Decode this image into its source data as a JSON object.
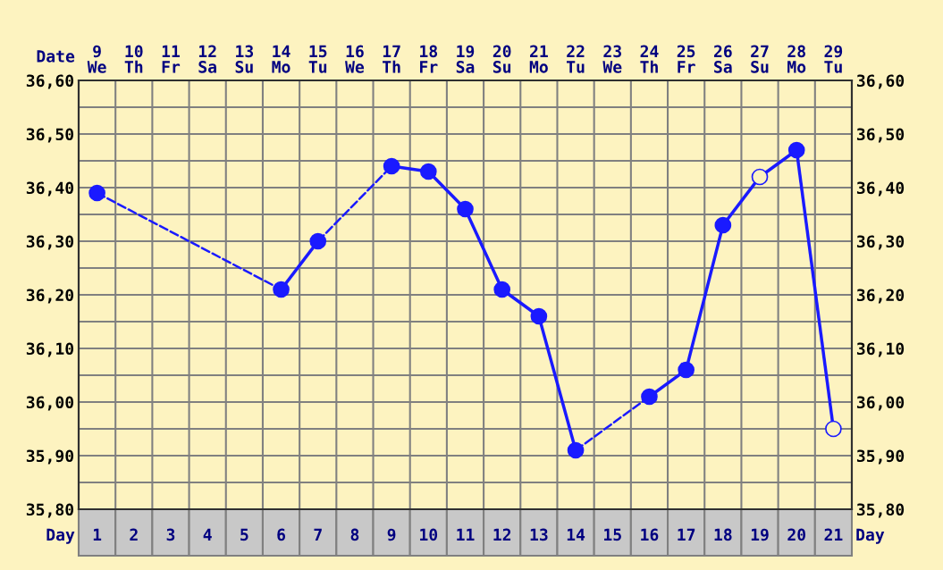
{
  "chart_data": {
    "type": "line",
    "categories": [
      "1",
      "2",
      "3",
      "4",
      "5",
      "6",
      "7",
      "8",
      "9",
      "10",
      "11",
      "12",
      "13",
      "14",
      "15",
      "16",
      "17",
      "18",
      "19",
      "20",
      "21"
    ],
    "annotations": [
      "Date",
      "9\nWe",
      "10\nTh",
      "11\nFr",
      "12\nSa",
      "13\nSu",
      "14\nMo",
      "15\nTu",
      "16\nWe",
      "17\nTh",
      "18\nFr",
      "19\nSa",
      "20\nSu",
      "21\nMo",
      "22\nTu",
      "23\nWe",
      "24\nTh",
      "25\nFr",
      "26\nSa",
      "27\nSu",
      "28\nMo",
      "29\nTu"
    ],
    "xlabel": "Day",
    "series": [
      {
        "color": "#1a1aff",
        "values": [
          36.39,
          null,
          null,
          null,
          null,
          36.21,
          36.3,
          null,
          36.44,
          36.43,
          36.36,
          36.21,
          36.16,
          35.91,
          null,
          36.01,
          36.06,
          36.33,
          36.42,
          36.47,
          35.95
        ],
        "colors": [
          "#1a1aff",
          null,
          null,
          null,
          null,
          "#1a1aff",
          "#1a1aff",
          null,
          "#1a1aff",
          "#1a1aff",
          "#1a1aff",
          "#1a1aff",
          "#1a1aff",
          "#1a1aff",
          null,
          "#1a1aff",
          "#1a1aff",
          "#1a1aff",
          "#fdf3c0",
          "#1a1aff",
          "#fdf3c0"
        ]
      }
    ],
    "marker": "circle",
    "line_style": "solid",
    "grid": true,
    "ylim": [
      35.8,
      36.6
    ],
    "yticks": [
      {
        "value": 35.8,
        "label": "35,80"
      },
      {
        "value": 35.85,
        "label": null
      },
      {
        "value": 35.9,
        "label": "35,90"
      },
      {
        "value": 35.95,
        "label": null
      },
      {
        "value": 36.0,
        "label": "36,00"
      },
      {
        "value": 36.05,
        "label": null
      },
      {
        "value": 36.1,
        "label": "36,10"
      },
      {
        "value": 36.15,
        "label": null
      },
      {
        "value": 36.2,
        "label": "36,20"
      },
      {
        "value": 36.25,
        "label": null
      },
      {
        "value": 36.3,
        "label": "36,30"
      },
      {
        "value": 36.35,
        "label": null
      },
      {
        "value": 36.4,
        "label": "36,40"
      },
      {
        "value": 36.45,
        "label": null
      },
      {
        "value": 36.5,
        "label": "36,50"
      },
      {
        "value": 36.55,
        "label": null
      },
      {
        "value": 36.6,
        "label": "36,60"
      }
    ],
    "y2lim": [
      35.8,
      36.6
    ],
    "y2ticks": [
      {
        "value": 35.8,
        "label": "35,80"
      },
      {
        "value": 35.85,
        "label": null
      },
      {
        "value": 35.9,
        "label": "35,90"
      },
      {
        "value": 35.95,
        "label": null
      },
      {
        "value": 36.0,
        "label": "36,00"
      },
      {
        "value": 36.05,
        "label": null
      },
      {
        "value": 36.1,
        "label": "36,10"
      },
      {
        "value": 36.15,
        "label": null
      },
      {
        "value": 36.2,
        "label": "36,20"
      },
      {
        "value": 36.25,
        "label": null
      },
      {
        "value": 36.3,
        "label": "36,30"
      },
      {
        "value": 36.35,
        "label": null
      },
      {
        "value": 36.4,
        "label": "36,40"
      },
      {
        "value": 36.45,
        "label": null
      },
      {
        "value": 36.5,
        "label": "36,50"
      },
      {
        "value": 36.55,
        "label": null
      },
      {
        "value": 36.6,
        "label": "36,60"
      }
    ]
  }
}
